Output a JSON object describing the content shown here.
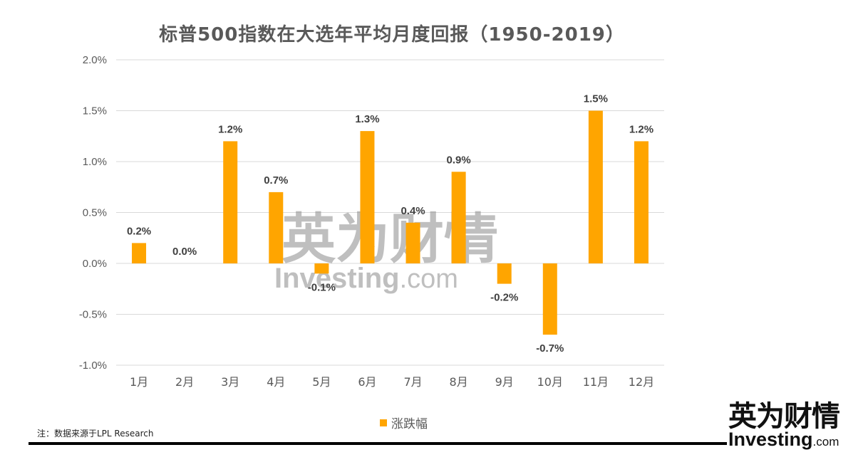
{
  "chart_data": {
    "type": "bar",
    "title": "标普500指数在大选年平均月度回报（1950-2019）",
    "categories": [
      "1月",
      "2月",
      "3月",
      "4月",
      "5月",
      "6月",
      "7月",
      "8月",
      "9月",
      "10月",
      "11月",
      "12月"
    ],
    "series": [
      {
        "name": "涨跌幅",
        "values": [
          0.2,
          0.0,
          1.2,
          0.7,
          -0.1,
          1.3,
          0.4,
          0.9,
          -0.2,
          -0.7,
          1.5,
          1.2
        ],
        "labels": [
          "0.2%",
          "0.0%",
          "1.2%",
          "0.7%",
          "-0.1%",
          "1.3%",
          "0.4%",
          "0.9%",
          "-0.2%",
          "-0.7%",
          "1.5%",
          "1.2%"
        ],
        "color": "#FFA500"
      }
    ],
    "ylim": [
      -1.0,
      2.0
    ],
    "yticks": [
      -1.0,
      -0.5,
      0.0,
      0.5,
      1.0,
      1.5,
      2.0
    ],
    "ytick_labels": [
      "-1.0%",
      "-0.5%",
      "0.0%",
      "0.5%",
      "1.0%",
      "1.5%",
      "2.0%"
    ],
    "grid": true,
    "legend": "bottom-center"
  },
  "legend_label": "涨跌幅",
  "note": "注：数据来源于LPL Research",
  "watermark": {
    "cn": "英为财情",
    "en": "Investing",
    "com": ".com"
  },
  "logo": {
    "cn": "英为财情",
    "en": "Investing",
    "com": ".com"
  },
  "colors": {
    "bar": "#FFA500",
    "grid": "#d9d9d9",
    "text": "#595959"
  }
}
